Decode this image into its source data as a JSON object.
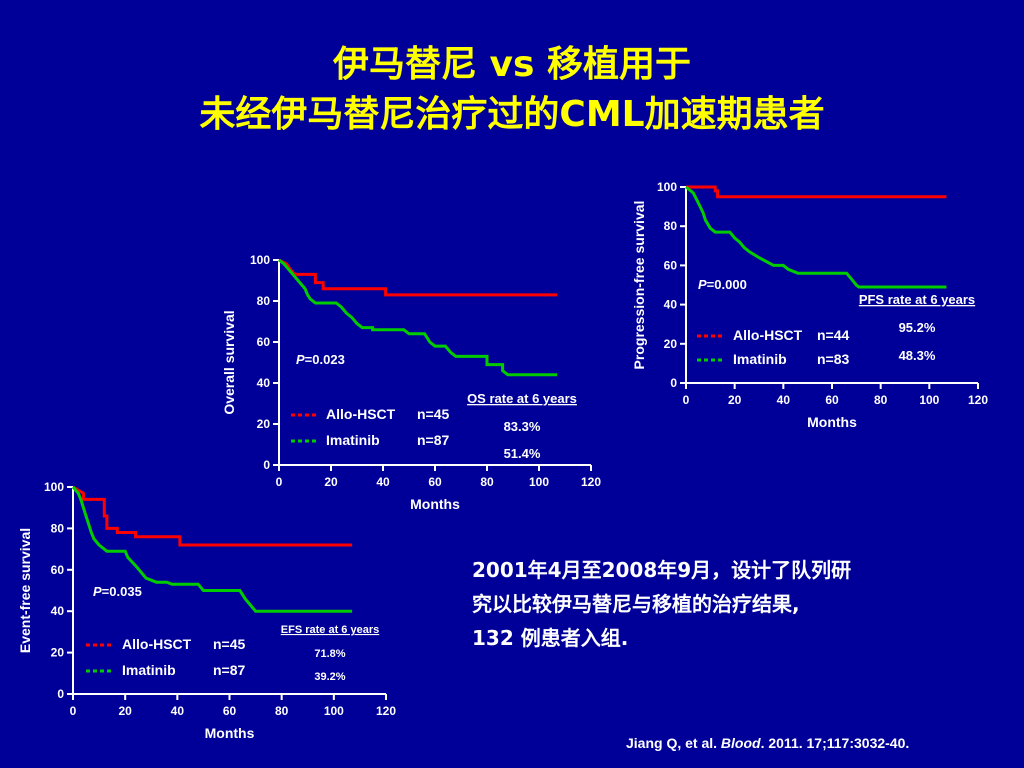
{
  "slide": {
    "title_line1": "伊马替尼 vs 移植用于",
    "title_line2": "未经伊马替尼治疗过的CML加速期患者",
    "note_lines": [
      "2001年4月至2008年9月，设计了队列研",
      "究以比较伊马替尼与移植的治疗结果,",
      "132 例患者入组."
    ],
    "citation": {
      "author": "Jiang Q, et al. ",
      "journal": "Blood",
      "rest": ". 2011. 17;117:3032-40."
    }
  },
  "colors": {
    "background": "#000099",
    "title": "#FFFF00",
    "allo": "#FF0000",
    "imatinib": "#00CC00",
    "text": "#FFFFFF"
  },
  "chart_data": [
    {
      "id": "os",
      "type": "line",
      "title": "",
      "ylabel": "Overall survival",
      "xlabel": "Months",
      "xlim": [
        0,
        120
      ],
      "ylim": [
        0,
        100
      ],
      "xticks": [
        0,
        20,
        40,
        60,
        80,
        100,
        120
      ],
      "yticks": [
        0,
        20,
        40,
        60,
        80,
        100
      ],
      "p_value": "=0.023",
      "rate_title": "OS rate at 6 years",
      "series": [
        {
          "name": "Allo-HSCT",
          "n": "n=45",
          "rate": "83.3%",
          "points": [
            [
              0,
              100
            ],
            [
              3,
              98
            ],
            [
              4,
              96
            ],
            [
              6,
              93
            ],
            [
              14,
              93
            ],
            [
              14,
              89
            ],
            [
              17,
              89
            ],
            [
              17,
              86
            ],
            [
              41,
              86
            ],
            [
              41,
              83
            ],
            [
              107,
              83
            ]
          ]
        },
        {
          "name": "Imatinib",
          "n": "n=87",
          "rate": "51.4%",
          "points": [
            [
              0,
              100
            ],
            [
              2,
              98
            ],
            [
              4,
              95
            ],
            [
              6,
              92
            ],
            [
              8,
              89
            ],
            [
              10,
              86
            ],
            [
              11,
              83
            ],
            [
              12,
              81
            ],
            [
              14,
              79
            ],
            [
              22,
              79
            ],
            [
              24,
              77
            ],
            [
              26,
              74
            ],
            [
              28,
              72
            ],
            [
              30,
              69
            ],
            [
              32,
              67
            ],
            [
              36,
              67
            ],
            [
              36,
              66
            ],
            [
              48,
              66
            ],
            [
              50,
              64
            ],
            [
              56,
              64
            ],
            [
              58,
              60
            ],
            [
              60,
              58
            ],
            [
              64,
              58
            ],
            [
              66,
              55
            ],
            [
              68,
              53
            ],
            [
              80,
              53
            ],
            [
              80,
              49
            ],
            [
              86,
              49
            ],
            [
              86,
              46
            ],
            [
              88,
              44
            ],
            [
              107,
              44
            ]
          ]
        }
      ]
    },
    {
      "id": "pfs",
      "type": "line",
      "title": "",
      "ylabel": "Progression-free survival",
      "xlabel": "Months",
      "xlim": [
        0,
        120
      ],
      "ylim": [
        0,
        100
      ],
      "xticks": [
        0,
        20,
        40,
        60,
        80,
        100,
        120
      ],
      "yticks": [
        0,
        20,
        40,
        60,
        80,
        100
      ],
      "p_value": "=0.000",
      "rate_title": "PFS rate at 6 years",
      "series": [
        {
          "name": "Allo-HSCT",
          "n": "n=44",
          "rate": "95.2%",
          "points": [
            [
              0,
              100
            ],
            [
              12,
              100
            ],
            [
              12,
              98
            ],
            [
              13,
              98
            ],
            [
              13,
              95
            ],
            [
              107,
              95
            ]
          ]
        },
        {
          "name": "Imatinib",
          "n": "n=83",
          "rate": "48.3%",
          "points": [
            [
              0,
              100
            ],
            [
              3,
              97
            ],
            [
              5,
              92
            ],
            [
              7,
              87
            ],
            [
              8,
              83
            ],
            [
              10,
              79
            ],
            [
              12,
              77
            ],
            [
              18,
              77
            ],
            [
              20,
              74
            ],
            [
              22,
              72
            ],
            [
              24,
              69
            ],
            [
              26,
              67
            ],
            [
              30,
              64
            ],
            [
              33,
              62
            ],
            [
              36,
              60
            ],
            [
              40,
              60
            ],
            [
              42,
              58
            ],
            [
              46,
              56
            ],
            [
              66,
              56
            ],
            [
              68,
              53
            ],
            [
              70,
              50
            ],
            [
              71,
              49
            ],
            [
              107,
              49
            ]
          ]
        }
      ]
    },
    {
      "id": "efs",
      "type": "line",
      "title": "",
      "ylabel": "Event-free survival",
      "xlabel": "Months",
      "xlim": [
        0,
        120
      ],
      "ylim": [
        0,
        100
      ],
      "xticks": [
        0,
        20,
        40,
        60,
        80,
        100,
        120
      ],
      "yticks": [
        0,
        20,
        40,
        60,
        80,
        100
      ],
      "p_value": "=0.035",
      "rate_title": "EFS rate at 6 years",
      "series": [
        {
          "name": "Allo-HSCT",
          "n": "n=45",
          "rate": "71.8%",
          "points": [
            [
              0,
              100
            ],
            [
              4,
              97
            ],
            [
              4,
              94
            ],
            [
              12,
              94
            ],
            [
              12,
              86
            ],
            [
              13,
              86
            ],
            [
              13,
              80
            ],
            [
              17,
              80
            ],
            [
              17,
              78
            ],
            [
              24,
              78
            ],
            [
              24,
              76
            ],
            [
              41,
              76
            ],
            [
              41,
              72
            ],
            [
              107,
              72
            ]
          ]
        },
        {
          "name": "Imatinib",
          "n": "n=87",
          "rate": "39.2%",
          "points": [
            [
              0,
              100
            ],
            [
              2,
              97
            ],
            [
              3,
              94
            ],
            [
              4,
              90
            ],
            [
              5,
              86
            ],
            [
              6,
              82
            ],
            [
              7,
              78
            ],
            [
              8,
              75
            ],
            [
              10,
              72
            ],
            [
              13,
              69
            ],
            [
              20,
              69
            ],
            [
              21,
              66
            ],
            [
              24,
              62
            ],
            [
              26,
              59
            ],
            [
              28,
              56
            ],
            [
              32,
              54
            ],
            [
              36,
              54
            ],
            [
              38,
              53
            ],
            [
              48,
              53
            ],
            [
              50,
              50
            ],
            [
              64,
              50
            ],
            [
              66,
              46
            ],
            [
              68,
              43
            ],
            [
              70,
              40
            ],
            [
              107,
              40
            ]
          ]
        }
      ]
    }
  ]
}
